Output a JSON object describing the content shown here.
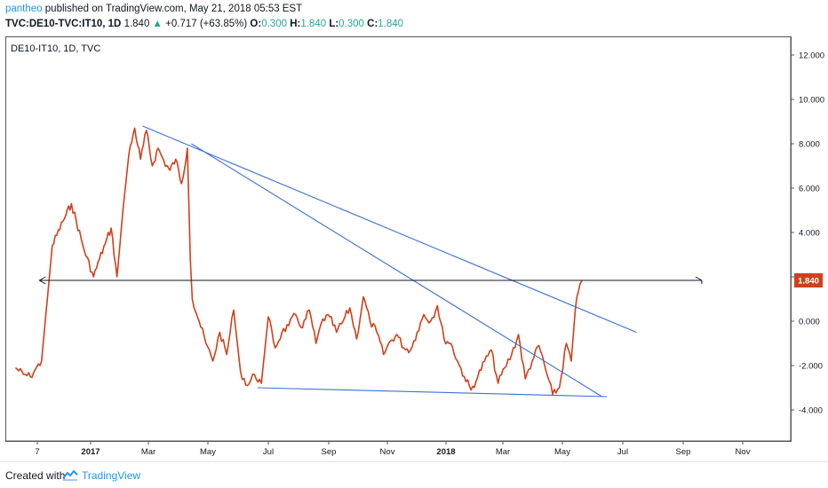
{
  "header": {
    "author": "pantheo",
    "published": "published on TradingView.com, May 21, 2018 05:53 EST",
    "symbol": "TVC:DE10-TVC:IT10, 1D",
    "last": "1.840",
    "change_arrow": "▲",
    "change": "+0.717 (+63.85%)",
    "o_label": "O:",
    "o_value": "0.300",
    "h_label": "H:",
    "h_value": "1.840",
    "l_label": "L:",
    "l_value": "0.300",
    "c_label": "C:",
    "c_value": "1.840"
  },
  "series_tag": "DE10-IT10, 1D, TVC",
  "footer": {
    "created_with": "Created with",
    "brand": "TradingView"
  },
  "colors": {
    "series": "#d0401b",
    "trendline": "#3b6fd6",
    "hline": "#131722",
    "price_box": "#d0401b",
    "brand": "#2196f3"
  },
  "chart_data": {
    "type": "line",
    "title": "DE10-IT10, 1D, TVC",
    "x_ticks": [
      "7",
      "2017",
      "Mar",
      "May",
      "Jul",
      "Sep",
      "Nov",
      "2018",
      "Mar",
      "May",
      "Jul",
      "Sep",
      "Nov"
    ],
    "y_ticks": [
      "12.000",
      "10.000",
      "8.000",
      "6.000",
      "4.000",
      "2.000",
      "0.000",
      "-2.000",
      "-4.000"
    ],
    "ylim": [
      -5.5,
      13
    ],
    "last_price": "1.840",
    "series": [
      {
        "name": "DE10-IT10",
        "x": [
          "2016-11-18",
          "2016-11-25",
          "2016-12-01",
          "2016-12-05",
          "2016-12-09",
          "2016-12-14",
          "2016-12-19",
          "2016-12-23",
          "2016-12-29",
          "2017-01-04",
          "2017-01-10",
          "2017-01-16",
          "2017-01-22",
          "2017-01-28",
          "2017-02-03",
          "2017-02-09",
          "2017-02-15",
          "2017-02-21",
          "2017-02-27",
          "2017-03-05",
          "2017-03-11",
          "2017-03-17",
          "2017-03-23",
          "2017-03-29",
          "2017-04-04",
          "2017-04-10",
          "2017-04-13",
          "2017-04-15",
          "2017-04-22",
          "2017-04-29",
          "2017-05-06",
          "2017-05-13",
          "2017-05-20",
          "2017-05-27",
          "2017-06-03",
          "2017-06-10",
          "2017-06-17",
          "2017-06-24",
          "2017-07-01",
          "2017-07-08",
          "2017-07-15",
          "2017-07-22",
          "2017-07-29",
          "2017-08-05",
          "2017-08-12",
          "2017-08-19",
          "2017-08-26",
          "2017-09-02",
          "2017-09-09",
          "2017-09-16",
          "2017-09-23",
          "2017-09-30",
          "2017-10-07",
          "2017-10-14",
          "2017-10-21",
          "2017-10-28",
          "2017-11-04",
          "2017-11-11",
          "2017-11-18",
          "2017-11-25",
          "2017-12-02",
          "2017-12-09",
          "2017-12-16",
          "2017-12-23",
          "2017-12-30",
          "2018-01-06",
          "2018-01-13",
          "2018-01-20",
          "2018-01-27",
          "2018-02-03",
          "2018-02-10",
          "2018-02-17",
          "2018-02-24",
          "2018-03-03",
          "2018-03-10",
          "2018-03-17",
          "2018-03-24",
          "2018-03-31",
          "2018-04-07",
          "2018-04-14",
          "2018-04-21",
          "2018-04-28",
          "2018-05-05",
          "2018-05-10",
          "2018-05-14",
          "2018-05-17",
          "2018-05-21"
        ],
        "values": [
          -2.1,
          -2.4,
          -2.5,
          -2.2,
          -1.8,
          3.4,
          4.5,
          5.3,
          3.2,
          2.0,
          2.8,
          3.5,
          4.2,
          2.0,
          5.0,
          7.5,
          8.7,
          7.3,
          8.6,
          7.0,
          7.8,
          7.2,
          6.8,
          7.3,
          6.2,
          7.8,
          2.8,
          1.0,
          0.0,
          -1.0,
          -1.8,
          -0.5,
          -1.5,
          0.5,
          -2.3,
          -2.9,
          -2.4,
          -2.8,
          0.2,
          -1.2,
          -0.5,
          -0.2,
          0.3,
          -0.3,
          0.5,
          -1.0,
          0.1,
          0.2,
          -0.5,
          0.0,
          0.6,
          -0.8,
          1.1,
          0.0,
          -0.5,
          -1.5,
          -0.9,
          -0.6,
          -1.2,
          -1.3,
          -0.5,
          0.3,
          0.0,
          0.7,
          -0.8,
          -1.0,
          -1.8,
          -2.5,
          -3.1,
          -2.5,
          -1.8,
          -1.3,
          -2.8,
          -2.1,
          -1.5,
          -0.6,
          -2.6,
          -1.8,
          -1.1,
          -2.2,
          -3.3,
          -3.0,
          -1.0,
          -1.8,
          0.5,
          1.3,
          1.84
        ]
      }
    ],
    "annotations": [
      {
        "type": "trendline",
        "from": {
          "x": "2017-02-23",
          "y": 8.8
        },
        "to": {
          "x": "2018-07-15",
          "y": -0.5
        }
      },
      {
        "type": "trendline",
        "from": {
          "x": "2017-04-14",
          "y": 8.0
        },
        "to": {
          "x": "2018-06-10",
          "y": -3.4
        }
      },
      {
        "type": "trendline",
        "from": {
          "x": "2017-06-20",
          "y": -3.0
        },
        "to": {
          "x": "2018-06-15",
          "y": -3.4
        }
      },
      {
        "type": "arrow",
        "from": {
          "x": "2016-12-08",
          "y": 1.84
        },
        "to": {
          "x": "2018-09-20",
          "y": 1.84
        }
      }
    ]
  }
}
